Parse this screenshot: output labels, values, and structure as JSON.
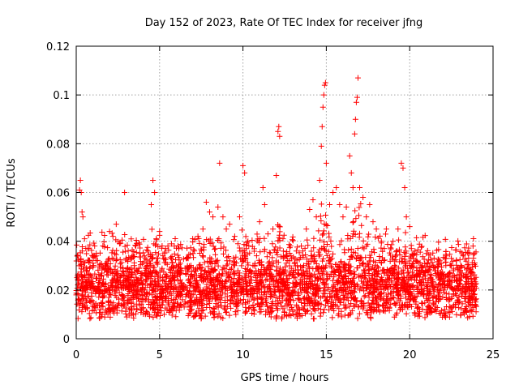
{
  "chart_data": {
    "type": "scatter",
    "title": "Day 152 of 2023, Rate Of TEC Index for receiver jfng",
    "xlabel": "GPS time / hours",
    "ylabel": "ROTI / TECUs",
    "xlim": [
      0,
      25
    ],
    "ylim": [
      0,
      0.12
    ],
    "xticks": [
      0,
      5,
      10,
      15,
      20,
      25
    ],
    "xtick_labels": [
      "0",
      "5",
      "10",
      "15",
      "20",
      "25"
    ],
    "yticks": [
      0,
      0.02,
      0.04,
      0.06,
      0.08,
      0.1,
      0.12
    ],
    "ytick_labels": [
      "0",
      "0.02",
      "0.04",
      "0.06",
      "0.08",
      "0.1",
      "0.12"
    ],
    "grid": true,
    "marker": "+",
    "series": [
      {
        "name": "ROTI",
        "color": "#ff0000",
        "points": [
          [
            0.0,
            0.018
          ],
          [
            0.1,
            0.034
          ],
          [
            0.2,
            0.061
          ],
          [
            0.25,
            0.065
          ],
          [
            0.3,
            0.06
          ],
          [
            0.35,
            0.052
          ],
          [
            0.4,
            0.05
          ],
          [
            0.5,
            0.041
          ],
          [
            0.6,
            0.028
          ],
          [
            0.8,
            0.022
          ],
          [
            1.0,
            0.031
          ],
          [
            1.2,
            0.035
          ],
          [
            1.5,
            0.026
          ],
          [
            1.8,
            0.03
          ],
          [
            2.0,
            0.044
          ],
          [
            2.2,
            0.042
          ],
          [
            2.4,
            0.047
          ],
          [
            2.6,
            0.039
          ],
          [
            2.9,
            0.06
          ],
          [
            3.0,
            0.033
          ],
          [
            3.3,
            0.029
          ],
          [
            3.6,
            0.025
          ],
          [
            4.0,
            0.021
          ],
          [
            4.3,
            0.036
          ],
          [
            4.5,
            0.055
          ],
          [
            4.6,
            0.065
          ],
          [
            4.7,
            0.06
          ],
          [
            4.8,
            0.041
          ],
          [
            5.0,
            0.044
          ],
          [
            5.3,
            0.035
          ],
          [
            5.5,
            0.038
          ],
          [
            5.8,
            0.025
          ],
          [
            6.0,
            0.03
          ],
          [
            6.3,
            0.028
          ],
          [
            6.6,
            0.033
          ],
          [
            7.0,
            0.035
          ],
          [
            7.3,
            0.042
          ],
          [
            7.6,
            0.045
          ],
          [
            7.8,
            0.056
          ],
          [
            8.0,
            0.052
          ],
          [
            8.2,
            0.05
          ],
          [
            8.5,
            0.054
          ],
          [
            8.6,
            0.072
          ],
          [
            8.8,
            0.05
          ],
          [
            9.0,
            0.045
          ],
          [
            9.2,
            0.047
          ],
          [
            9.5,
            0.03
          ],
          [
            9.8,
            0.05
          ],
          [
            10.0,
            0.071
          ],
          [
            10.1,
            0.068
          ],
          [
            10.3,
            0.04
          ],
          [
            10.6,
            0.03
          ],
          [
            11.0,
            0.048
          ],
          [
            11.2,
            0.062
          ],
          [
            11.3,
            0.055
          ],
          [
            11.5,
            0.043
          ],
          [
            11.8,
            0.045
          ],
          [
            12.0,
            0.067
          ],
          [
            12.1,
            0.085
          ],
          [
            12.15,
            0.087
          ],
          [
            12.2,
            0.083
          ],
          [
            12.4,
            0.041
          ],
          [
            12.8,
            0.032
          ],
          [
            13.2,
            0.036
          ],
          [
            13.5,
            0.038
          ],
          [
            13.8,
            0.045
          ],
          [
            14.0,
            0.053
          ],
          [
            14.2,
            0.057
          ],
          [
            14.4,
            0.05
          ],
          [
            14.6,
            0.065
          ],
          [
            14.7,
            0.079
          ],
          [
            14.75,
            0.087
          ],
          [
            14.8,
            0.095
          ],
          [
            14.85,
            0.1
          ],
          [
            14.9,
            0.104
          ],
          [
            14.95,
            0.105
          ],
          [
            15.0,
            0.072
          ],
          [
            15.2,
            0.055
          ],
          [
            15.4,
            0.06
          ],
          [
            15.6,
            0.062
          ],
          [
            15.8,
            0.055
          ],
          [
            16.0,
            0.05
          ],
          [
            16.2,
            0.054
          ],
          [
            16.4,
            0.075
          ],
          [
            16.5,
            0.068
          ],
          [
            16.6,
            0.062
          ],
          [
            16.7,
            0.084
          ],
          [
            16.75,
            0.09
          ],
          [
            16.8,
            0.097
          ],
          [
            16.85,
            0.099
          ],
          [
            16.9,
            0.107
          ],
          [
            17.0,
            0.062
          ],
          [
            17.2,
            0.058
          ],
          [
            17.4,
            0.05
          ],
          [
            17.6,
            0.055
          ],
          [
            17.8,
            0.048
          ],
          [
            18.0,
            0.045
          ],
          [
            18.3,
            0.04
          ],
          [
            18.6,
            0.045
          ],
          [
            19.0,
            0.04
          ],
          [
            19.3,
            0.045
          ],
          [
            19.5,
            0.072
          ],
          [
            19.6,
            0.07
          ],
          [
            19.7,
            0.062
          ],
          [
            19.8,
            0.05
          ],
          [
            20.0,
            0.046
          ],
          [
            20.3,
            0.035
          ],
          [
            20.6,
            0.028
          ],
          [
            21.0,
            0.035
          ],
          [
            21.4,
            0.03
          ],
          [
            21.8,
            0.032
          ],
          [
            22.2,
            0.034
          ],
          [
            22.5,
            0.033
          ],
          [
            22.8,
            0.032
          ],
          [
            23.2,
            0.034
          ],
          [
            23.5,
            0.035
          ],
          [
            23.8,
            0.038
          ]
        ]
      }
    ]
  }
}
